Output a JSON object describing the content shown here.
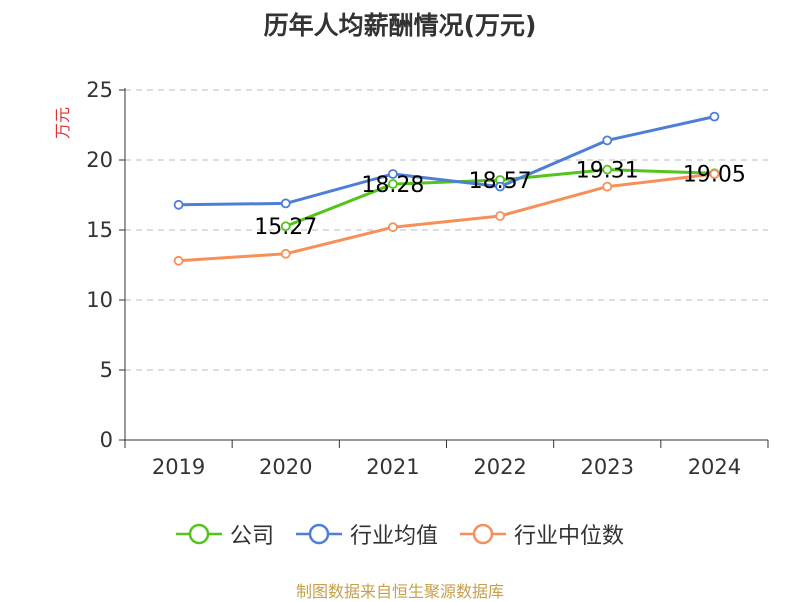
{
  "chart_data": {
    "type": "line",
    "title": "历年人均薪酬情况(万元)",
    "ylabel": "万元",
    "xlabel": "",
    "ylim": [
      0,
      25
    ],
    "yticks": [
      0,
      5,
      10,
      15,
      20,
      25
    ],
    "categories": [
      "2019",
      "2020",
      "2021",
      "2022",
      "2023",
      "2024"
    ],
    "grid": true,
    "legend_position": "bottom",
    "series": [
      {
        "name": "公司",
        "color": "#52c41a",
        "values": [
          null,
          15.27,
          18.28,
          18.57,
          19.31,
          19.05
        ],
        "labels": [
          null,
          "15.27",
          "18.28",
          "18.57",
          "19.31",
          "19.05"
        ]
      },
      {
        "name": "行业均值",
        "color": "#4e7fd6",
        "values": [
          16.8,
          16.9,
          19.0,
          18.1,
          21.4,
          23.1
        ]
      },
      {
        "name": "行业中位数",
        "color": "#f79058",
        "values": [
          12.8,
          13.3,
          15.2,
          16.0,
          18.1,
          19.0
        ]
      }
    ]
  },
  "source_note": "制图数据来自恒生聚源数据库",
  "colors": {
    "axis": "#333333",
    "grid": "#bbbbbb",
    "ylabel": "#e03030",
    "source": "#c8a04a"
  }
}
